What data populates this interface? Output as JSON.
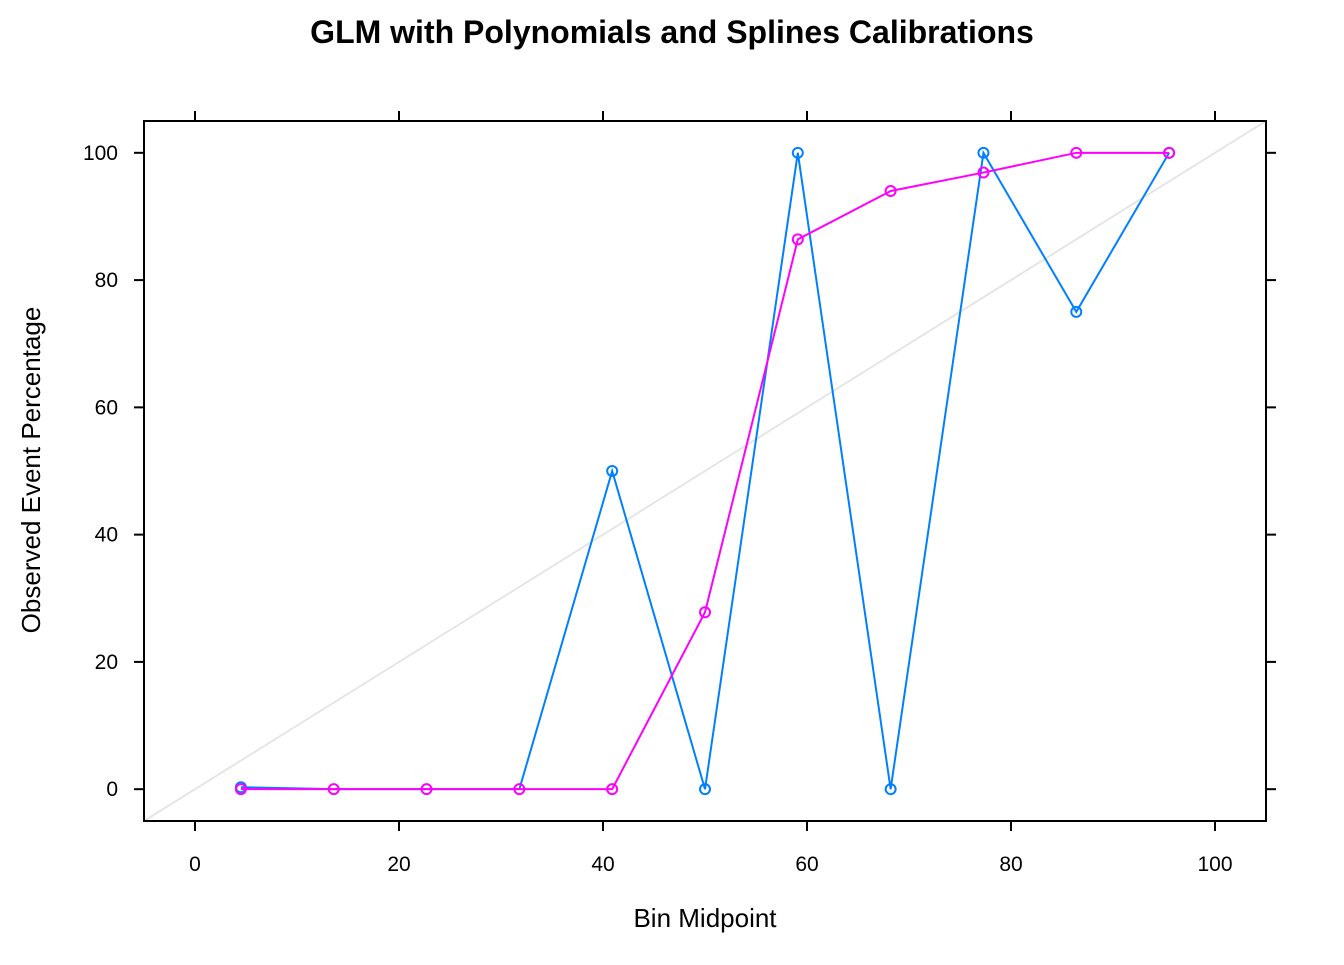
{
  "chart_data": {
    "type": "line",
    "title": "GLM with Polynomials and Splines Calibrations",
    "xlabel": "Bin Midpoint",
    "ylabel": "Observed Event Percentage",
    "xlim": [
      -5,
      105
    ],
    "ylim": [
      -5,
      105
    ],
    "xticks": [
      0,
      20,
      40,
      60,
      80,
      100
    ],
    "yticks": [
      0,
      20,
      40,
      60,
      80,
      100
    ],
    "grid": false,
    "reference_line": {
      "from": [
        -5,
        -5
      ],
      "to": [
        105,
        105
      ],
      "color": "#e6e6e6"
    },
    "series": [
      {
        "color": "#0080ff",
        "x": [
          4.5,
          13.6,
          22.7,
          31.8,
          40.9,
          50.0,
          59.1,
          68.2,
          77.3,
          86.4,
          95.5
        ],
        "y": [
          0.3,
          0.0,
          0.0,
          0.0,
          50.0,
          0.0,
          100.0,
          0.0,
          100.0,
          75.0,
          100.0
        ],
        "marked": [
          true,
          false,
          false,
          false,
          true,
          true,
          true,
          true,
          true,
          true,
          true
        ]
      },
      {
        "color": "#ff00ff",
        "x": [
          4.5,
          13.6,
          22.7,
          31.8,
          40.9,
          50.0,
          59.1,
          68.2,
          77.3,
          86.4,
          95.5
        ],
        "y": [
          0.0,
          0.0,
          0.0,
          0.0,
          0.0,
          27.8,
          86.4,
          94.0,
          96.9,
          100.0,
          100.0
        ],
        "marked": [
          true,
          true,
          true,
          true,
          true,
          true,
          true,
          true,
          true,
          true,
          true
        ]
      }
    ]
  }
}
